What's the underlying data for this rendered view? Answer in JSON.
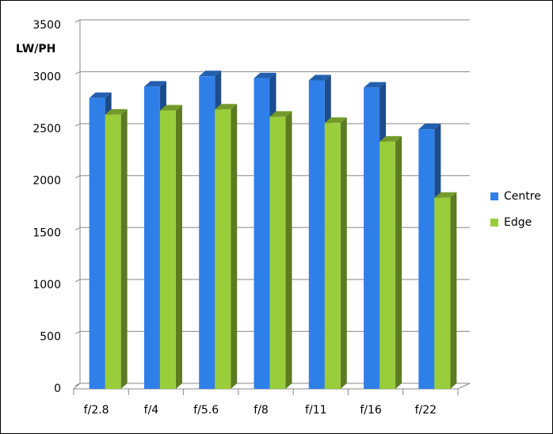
{
  "chart_data": {
    "type": "bar",
    "y_label": "LW/PH",
    "categories": [
      "f/2.8",
      "f/4",
      "f/5.6",
      "f/8",
      "f/11",
      "f/16",
      "f/22"
    ],
    "series": [
      {
        "name": "Centre",
        "color": "#2f7fe8",
        "values": [
          2800,
          2910,
          3010,
          2990,
          2970,
          2900,
          2500
        ]
      },
      {
        "name": "Edge",
        "color": "#9acd3a",
        "values": [
          2640,
          2680,
          2690,
          2620,
          2560,
          2380,
          1840
        ]
      }
    ],
    "ylim": [
      0,
      3500
    ],
    "yticks": [
      0,
      500,
      1000,
      1500,
      2000,
      2500,
      3000,
      3500
    ],
    "grid": true,
    "legend": "right"
  }
}
